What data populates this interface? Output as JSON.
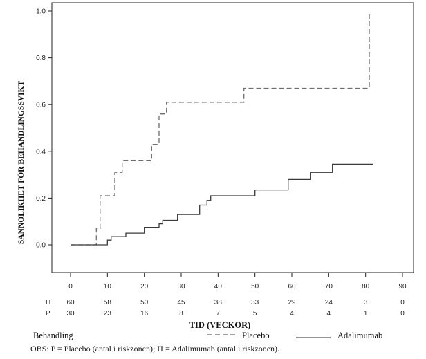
{
  "chart_data": {
    "type": "line",
    "step": true,
    "ylabel": "SANNOLIKHET FÖR BEHANDLINGSSVIKT",
    "xlabel": "TID (VECKOR)",
    "xlim": [
      -5,
      92
    ],
    "ylim": [
      -0.1,
      1.0
    ],
    "x_ticks": [
      0,
      10,
      20,
      30,
      40,
      50,
      60,
      70,
      80,
      90
    ],
    "y_ticks": [
      0.0,
      0.2,
      0.4,
      0.6,
      0.8,
      1.0
    ],
    "y_tick_labels": [
      "0.0",
      "0.2",
      "0.4",
      "0.6",
      "0.8",
      "1.0"
    ],
    "series": [
      {
        "name": "Placebo",
        "style": "dashed",
        "points": [
          [
            0,
            0
          ],
          [
            7,
            0
          ],
          [
            7,
            0.07
          ],
          [
            8,
            0.07
          ],
          [
            8,
            0.21
          ],
          [
            12,
            0.21
          ],
          [
            12,
            0.31
          ],
          [
            14,
            0.31
          ],
          [
            14,
            0.36
          ],
          [
            22,
            0.36
          ],
          [
            22,
            0.43
          ],
          [
            24,
            0.43
          ],
          [
            24,
            0.56
          ],
          [
            26,
            0.56
          ],
          [
            26,
            0.61
          ],
          [
            47,
            0.61
          ],
          [
            47,
            0.67
          ],
          [
            81,
            0.67
          ],
          [
            81,
            1.0
          ]
        ]
      },
      {
        "name": "Adalimumab",
        "style": "solid",
        "points": [
          [
            0,
            0
          ],
          [
            10,
            0
          ],
          [
            10,
            0.02
          ],
          [
            11,
            0.02
          ],
          [
            11,
            0.035
          ],
          [
            15,
            0.035
          ],
          [
            15,
            0.05
          ],
          [
            20,
            0.05
          ],
          [
            20,
            0.075
          ],
          [
            24,
            0.075
          ],
          [
            24,
            0.09
          ],
          [
            25,
            0.09
          ],
          [
            25,
            0.105
          ],
          [
            29,
            0.105
          ],
          [
            29,
            0.13
          ],
          [
            35,
            0.13
          ],
          [
            35,
            0.17
          ],
          [
            37,
            0.17
          ],
          [
            37,
            0.19
          ],
          [
            38,
            0.19
          ],
          [
            38,
            0.21
          ],
          [
            50,
            0.21
          ],
          [
            50,
            0.235
          ],
          [
            59,
            0.235
          ],
          [
            59,
            0.28
          ],
          [
            65,
            0.28
          ],
          [
            65,
            0.31
          ],
          [
            71,
            0.31
          ],
          [
            71,
            0.345
          ],
          [
            82,
            0.345
          ]
        ]
      }
    ],
    "risk_table": {
      "rows": [
        {
          "label": "H",
          "values": [
            "60",
            "58",
            "50",
            "45",
            "38",
            "33",
            "29",
            "24",
            "3",
            "0"
          ]
        },
        {
          "label": "P",
          "values": [
            "30",
            "23",
            "16",
            "8",
            "7",
            "5",
            "4",
            "4",
            "1",
            "0"
          ]
        }
      ]
    },
    "legend": {
      "title": "Behandling",
      "entries": [
        {
          "label": "Placebo",
          "style": "dashed"
        },
        {
          "label": "Adalimumab",
          "style": "solid"
        }
      ]
    }
  },
  "note": "OBS: P = Placebo (antal i riskzonen); H = Adalimumab (antal i riskzonen)."
}
